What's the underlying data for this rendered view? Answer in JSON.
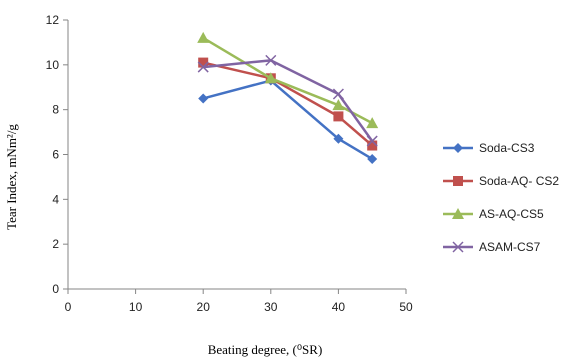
{
  "chart_data": {
    "type": "line",
    "title": "",
    "xlabel": "Beating degree, (⁰SR)",
    "ylabel": "Tear Index, mNm²/g",
    "xlim": [
      0,
      50
    ],
    "ylim": [
      0,
      12
    ],
    "xticks": [
      "0",
      "10",
      "20",
      "30",
      "40",
      "50"
    ],
    "yticks": [
      "0",
      "2",
      "4",
      "6",
      "8",
      "10",
      "12"
    ],
    "grid": false,
    "legend_position": "right",
    "x": [
      20,
      30,
      40,
      45
    ],
    "series": [
      {
        "name": "Soda-CS3",
        "values": [
          8.5,
          9.3,
          6.7,
          5.8
        ],
        "color": "#4472C4",
        "marker": "diamond"
      },
      {
        "name": "Soda-AQ- CS2",
        "values": [
          10.1,
          9.4,
          7.7,
          6.4
        ],
        "color": "#C0504D",
        "marker": "square"
      },
      {
        "name": "AS-AQ-CS5",
        "values": [
          11.2,
          9.4,
          8.2,
          7.4
        ],
        "color": "#9BBB59",
        "marker": "triangle"
      },
      {
        "name": "ASAM-CS7",
        "values": [
          9.9,
          10.2,
          8.7,
          6.6
        ],
        "color": "#8064A2",
        "marker": "x"
      }
    ]
  }
}
